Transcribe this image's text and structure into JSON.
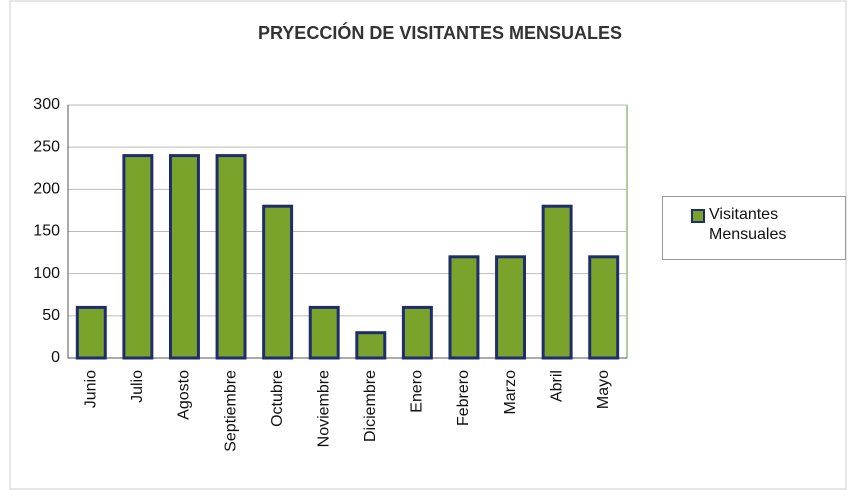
{
  "chart_data": {
    "type": "bar",
    "title": "PRYECCIÓN DE VISITANTES MENSUALES",
    "categories": [
      "Junio",
      "Julio",
      "Agosto",
      "Septiembre",
      "Octubre",
      "Noviembre",
      "Diciembre",
      "Enero",
      "Febrero",
      "Marzo",
      "Abril",
      "Mayo"
    ],
    "series": [
      {
        "name": "Visitantes Mensuales",
        "color": "#7aa32b",
        "values": [
          60,
          240,
          240,
          240,
          180,
          60,
          30,
          60,
          120,
          120,
          180,
          120
        ]
      }
    ],
    "ylim": [
      0,
      300
    ],
    "yticks": [
      0,
      50,
      100,
      150,
      200,
      250,
      300
    ],
    "grid": true,
    "legend": "right"
  }
}
